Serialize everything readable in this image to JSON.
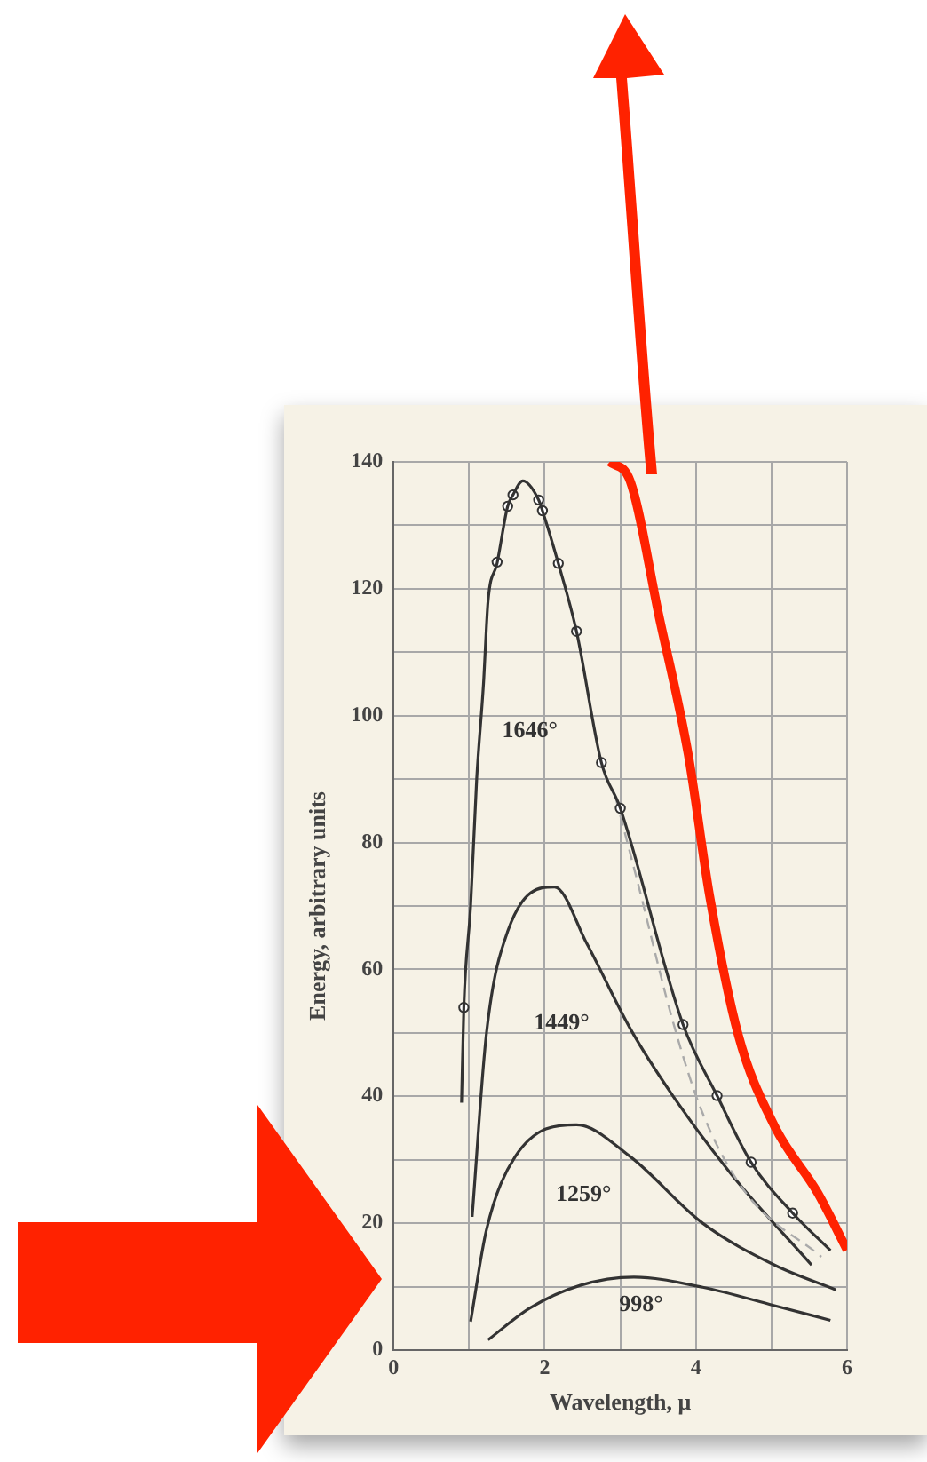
{
  "chart_data": {
    "type": "line",
    "xlabel": "Wavelength, μ",
    "ylabel": "Energy, arbitrary units",
    "xlim": [
      0,
      6
    ],
    "ylim": [
      0,
      140
    ],
    "xticks": [
      0,
      {
        "value": 1,
        "label": null
      },
      2,
      {
        "value": 3,
        "label": null
      },
      4,
      {
        "value": 5,
        "label": null
      },
      6
    ],
    "yticks": [
      0,
      {
        "value": 10,
        "label": null
      },
      20,
      {
        "value": 30,
        "label": null
      },
      40,
      {
        "value": 50,
        "label": null
      },
      60,
      {
        "value": 70,
        "label": null
      },
      80,
      {
        "value": 90,
        "label": null
      },
      100,
      {
        "value": 110,
        "label": null
      },
      120,
      {
        "value": 130,
        "label": null
      },
      140
    ],
    "grid": true,
    "legend": false,
    "series": [
      {
        "type": "line",
        "name": "1646°",
        "color": "#333333",
        "marker": "none",
        "x": [
          0.9,
          0.93,
          1.02,
          1.1,
          1.19,
          1.25,
          1.37,
          1.51,
          1.58,
          1.71,
          1.92,
          1.97,
          2.18,
          2.42,
          2.75,
          3.0,
          3.83,
          4.28,
          4.73,
          5.28,
          5.78
        ],
        "values": [
          39,
          54,
          70,
          90,
          105,
          118,
          124,
          133,
          134.8,
          137,
          134,
          132.3,
          124,
          113.3,
          92.6,
          85.4,
          51.3,
          40.1,
          29.6,
          21.6,
          15.7
        ]
      },
      {
        "type": "scatter",
        "color": "#333333",
        "marker": "circle",
        "x": [
          0.93,
          1.37,
          1.51,
          1.58,
          1.92,
          1.97,
          2.18,
          2.42,
          2.75,
          3.0,
          3.83,
          4.28,
          4.73,
          5.28
        ],
        "values": [
          54,
          124.2,
          133,
          134.8,
          134,
          132.3,
          124,
          113.3,
          92.6,
          85.4,
          51.3,
          40.1,
          29.6,
          21.6
        ]
      },
      {
        "type": "line",
        "color": "#aaaaaa",
        "marker": "none",
        "line_style": "dashed",
        "x": [
          2.94,
          3.23,
          3.7,
          4.09,
          4.66,
          5.66
        ],
        "values": [
          87,
          73.7,
          51.6,
          37.3,
          24.8,
          14.7
        ]
      },
      {
        "type": "line",
        "name": "1449°",
        "color": "#333333",
        "marker": "none",
        "x": [
          1.04,
          1.23,
          1.51,
          2.13,
          2.56,
          3.13,
          3.7,
          4.47,
          5.53
        ],
        "values": [
          21,
          50,
          66,
          73,
          64,
          50.7,
          40,
          27.7,
          13.4
        ]
      },
      {
        "type": "line",
        "name": "1259°",
        "color": "#333333",
        "marker": "none",
        "x": [
          1.02,
          1.23,
          1.61,
          2.42,
          3.13,
          4.09,
          5.04,
          5.85
        ],
        "values": [
          4.5,
          19,
          30.5,
          35.5,
          30.5,
          20,
          13.4,
          9.5
        ]
      },
      {
        "type": "line",
        "name": "998°",
        "color": "#333333",
        "marker": "none",
        "x": [
          1.25,
          1.8,
          2.47,
          3.18,
          4.09,
          5.04,
          5.78
        ],
        "values": [
          1.6,
          6.6,
          10.2,
          11.5,
          9.9,
          7,
          4.7
        ]
      },
      {
        "type": "line",
        "color": "#ff2200",
        "marker": "none",
        "x": [
          2.86,
          3.13,
          3.51,
          3.9,
          4.18,
          4.56,
          5.04,
          5.61,
          6.0
        ],
        "values": [
          140,
          137,
          115.8,
          93.8,
          71.7,
          49.7,
          35.3,
          24.8,
          15.8
        ]
      }
    ]
  }
}
